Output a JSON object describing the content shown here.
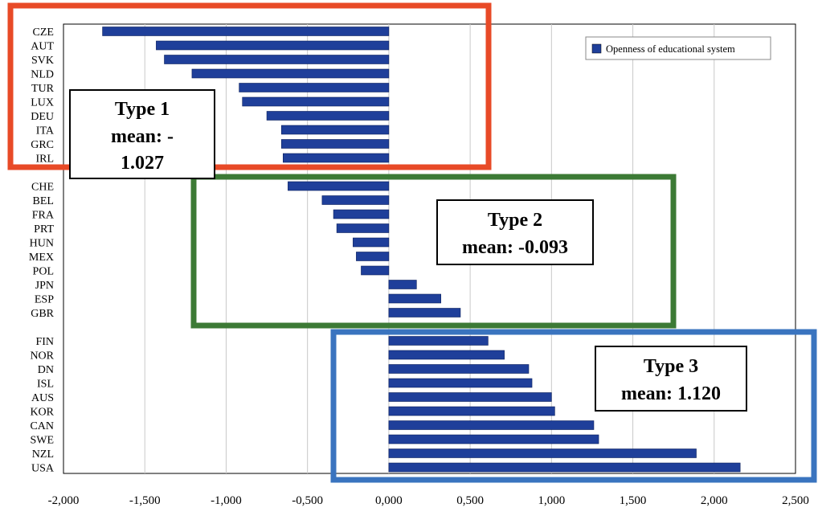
{
  "chart_data": {
    "type": "bar",
    "orientation": "horizontal",
    "series": [
      {
        "name": "Openness of educational system",
        "color": "#1f3f9a",
        "categories": [
          "CZE",
          "AUT",
          "SVK",
          "NLD",
          "TUR",
          "LUX",
          "DEU",
          "ITA",
          "GRC",
          "IRL",
          "CHE",
          "BEL",
          "FRA",
          "PRT",
          "HUN",
          "MEX",
          "POL",
          "JPN",
          "ESP",
          "GBR",
          "FIN",
          "NOR",
          "DN",
          "ISL",
          "AUS",
          "KOR",
          "CAN",
          "SWE",
          "NZL",
          "USA"
        ],
        "values": [
          -1.76,
          -1.43,
          -1.38,
          -1.21,
          -0.92,
          -0.9,
          -0.75,
          -0.66,
          -0.66,
          -0.65,
          -0.62,
          -0.41,
          -0.34,
          -0.32,
          -0.22,
          -0.2,
          -0.17,
          0.17,
          0.32,
          0.44,
          0.61,
          0.71,
          0.86,
          0.88,
          1.0,
          1.02,
          1.26,
          1.29,
          1.89,
          2.16
        ]
      }
    ],
    "x_axis": {
      "range": [
        -2.0,
        2.5
      ],
      "ticks": [
        -2.0,
        -1.5,
        -1.0,
        -0.5,
        0.0,
        0.5,
        1.0,
        1.5,
        2.0,
        2.5
      ],
      "tick_labels": [
        "-2,000",
        "-1,500",
        "-1,000",
        "-0,500",
        "0,000",
        "0,500",
        "1,000",
        "1,500",
        "2,000",
        "2,500"
      ]
    },
    "grid": "vertical",
    "legend_position": "top-right",
    "groups": [
      {
        "id": "type1",
        "title": "Type 1",
        "mean_line1": "mean: -",
        "mean_line2": "1.027",
        "frame_color": "#e84a27"
      },
      {
        "id": "type2",
        "title": "Type 2",
        "mean_line1": "mean: -0.093",
        "frame_color": "#3c7a35"
      },
      {
        "id": "type3",
        "title": "Type 3",
        "mean_line1": "mean: 1.120",
        "frame_color": "#3a74bf"
      }
    ]
  }
}
